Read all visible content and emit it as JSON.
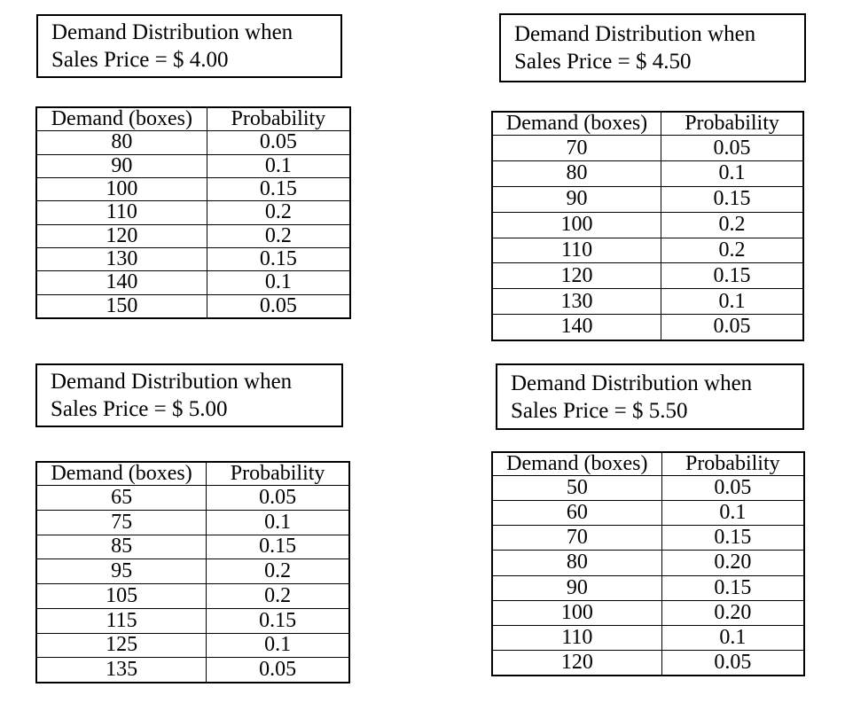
{
  "colors": {
    "background": "#ffffff",
    "text": "#000000",
    "border": "#000000"
  },
  "panels": [
    {
      "title_line1": "Demand Distribution when",
      "title_line2": "Sales Price = $ 4.00",
      "table": {
        "headers": [
          "Demand (boxes)",
          "Probability"
        ],
        "rows": [
          [
            "80",
            "0.05"
          ],
          [
            "90",
            "0.1"
          ],
          [
            "100",
            "0.15"
          ],
          [
            "110",
            "0.2"
          ],
          [
            "120",
            "0.2"
          ],
          [
            "130",
            "0.15"
          ],
          [
            "140",
            "0.1"
          ],
          [
            "150",
            "0.05"
          ]
        ]
      }
    },
    {
      "title_line1": "Demand Distribution when",
      "title_line2": "Sales Price = $ 4.50",
      "table": {
        "headers": [
          "Demand (boxes)",
          "Probability"
        ],
        "rows": [
          [
            "70",
            "0.05"
          ],
          [
            "80",
            "0.1"
          ],
          [
            "90",
            "0.15"
          ],
          [
            "100",
            "0.2"
          ],
          [
            "110",
            "0.2"
          ],
          [
            "120",
            "0.15"
          ],
          [
            "130",
            "0.1"
          ],
          [
            "140",
            "0.05"
          ]
        ]
      }
    },
    {
      "title_line1": "Demand Distribution when",
      "title_line2": "Sales Price = $ 5.00",
      "table": {
        "headers": [
          "Demand (boxes)",
          "Probability"
        ],
        "rows": [
          [
            "65",
            "0.05"
          ],
          [
            "75",
            "0.1"
          ],
          [
            "85",
            "0.15"
          ],
          [
            "95",
            "0.2"
          ],
          [
            "105",
            "0.2"
          ],
          [
            "115",
            "0.15"
          ],
          [
            "125",
            "0.1"
          ],
          [
            "135",
            "0.05"
          ]
        ]
      }
    },
    {
      "title_line1": "Demand Distribution when",
      "title_line2": "Sales Price = $ 5.50",
      "table": {
        "headers": [
          "Demand (boxes)",
          "Probability"
        ],
        "rows": [
          [
            "50",
            "0.05"
          ],
          [
            "60",
            "0.1"
          ],
          [
            "70",
            "0.15"
          ],
          [
            "80",
            "0.20"
          ],
          [
            "90",
            "0.15"
          ],
          [
            "100",
            "0.20"
          ],
          [
            "110",
            "0.1"
          ],
          [
            "120",
            "0.05"
          ]
        ]
      }
    }
  ]
}
